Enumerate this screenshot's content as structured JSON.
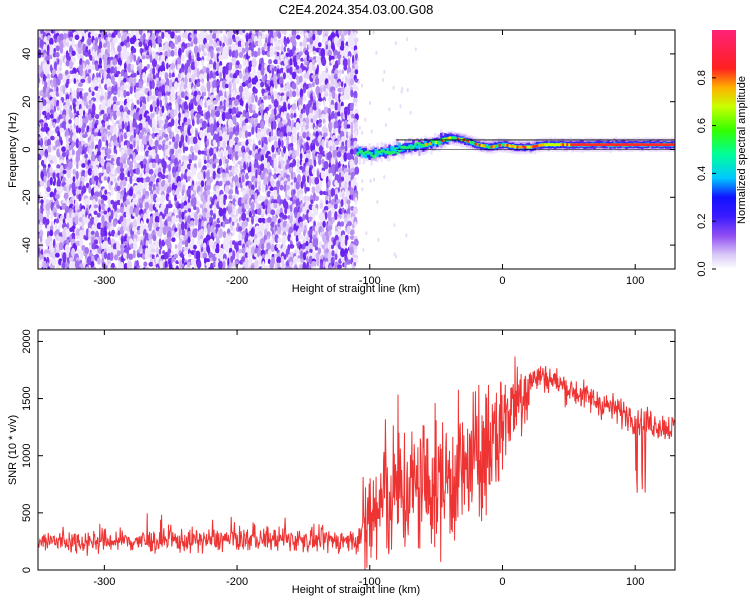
{
  "title": "C2E4.2024.354.03.00.G08",
  "chart_data": [
    {
      "type": "heatmap",
      "xlabel": "Height of straight line (km)",
      "ylabel": "Frequency (Hz)",
      "xlim": [
        -350,
        130
      ],
      "ylim": [
        -50,
        50
      ],
      "xticks": [
        -300,
        -200,
        -100,
        0,
        100
      ],
      "yticks": [
        -40,
        -20,
        0,
        20,
        40
      ],
      "noise_region_x": [
        -350,
        -110
      ],
      "signal_band": {
        "x_range": [
          -110,
          130
        ],
        "center_freq_hz": [
          [
            -110,
            -1
          ],
          [
            -100,
            -2
          ],
          [
            -90,
            -1
          ],
          [
            -80,
            0
          ],
          [
            -70,
            1
          ],
          [
            -60,
            2
          ],
          [
            -50,
            3
          ],
          [
            -40,
            5
          ],
          [
            -30,
            4
          ],
          [
            -20,
            2
          ],
          [
            -10,
            1
          ],
          [
            0,
            2
          ],
          [
            10,
            1
          ],
          [
            20,
            1
          ],
          [
            30,
            2
          ],
          [
            50,
            2
          ],
          [
            70,
            2
          ],
          [
            90,
            2
          ],
          [
            110,
            2
          ],
          [
            130,
            2
          ]
        ]
      },
      "colorbar": {
        "label": "Normalized spectral amplitude",
        "ticks": [
          0.0,
          0.2,
          0.4,
          0.6,
          0.8
        ],
        "range": [
          0,
          1
        ],
        "palette": [
          "#ffffff",
          "#8f4df2",
          "#1111ff",
          "#00c8ff",
          "#00ff55",
          "#a8ff00",
          "#ffb000",
          "#ff2020",
          "#ff2277"
        ]
      }
    },
    {
      "type": "line",
      "xlabel": "Height of straight line (km)",
      "ylabel": "SNR (10 * v/v)",
      "xlim": [
        -350,
        130
      ],
      "ylim": [
        0,
        2100
      ],
      "xticks": [
        -300,
        -200,
        -100,
        0,
        100
      ],
      "yticks": [
        0,
        500,
        1000,
        1500,
        2000
      ],
      "color": "#ee3333",
      "series": [
        {
          "values": [
            [
              -350,
              250
            ],
            [
              -320,
              250
            ],
            [
              -290,
              255
            ],
            [
              -260,
              250
            ],
            [
              -230,
              260
            ],
            [
              -200,
              270
            ],
            [
              -170,
              270
            ],
            [
              -140,
              260
            ],
            [
              -110,
              255
            ],
            [
              -100,
              420
            ],
            [
              -90,
              600
            ],
            [
              -80,
              680
            ],
            [
              -70,
              700
            ],
            [
              -60,
              720
            ],
            [
              -50,
              740
            ],
            [
              -40,
              800
            ],
            [
              -30,
              850
            ],
            [
              -20,
              950
            ],
            [
              -10,
              1050
            ],
            [
              0,
              1300
            ],
            [
              10,
              1500
            ],
            [
              20,
              1650
            ],
            [
              30,
              1700
            ],
            [
              40,
              1650
            ],
            [
              50,
              1580
            ],
            [
              60,
              1530
            ],
            [
              70,
              1480
            ],
            [
              80,
              1430
            ],
            [
              90,
              1380
            ],
            [
              100,
              1330
            ],
            [
              110,
              1290
            ],
            [
              120,
              1260
            ],
            [
              130,
              1240
            ]
          ]
        }
      ]
    }
  ]
}
